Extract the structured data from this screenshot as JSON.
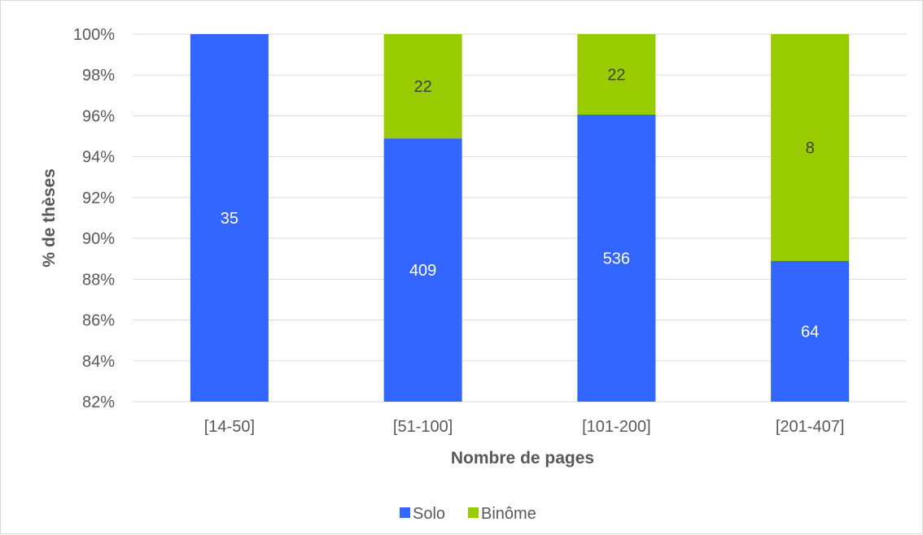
{
  "chart_data": {
    "type": "bar",
    "stacked": true,
    "percent": true,
    "categories": [
      "[14-50]",
      "[51-100]",
      "[101-200]",
      "[201-407]"
    ],
    "series": [
      {
        "name": "Solo",
        "color": "#3366FF",
        "counts": [
          35,
          409,
          536,
          64
        ],
        "labels": [
          "35",
          "409",
          "536",
          "64"
        ],
        "label_color": "#ffffff"
      },
      {
        "name": "Binôme",
        "color": "#99CC00",
        "counts": [
          0,
          22,
          22,
          8
        ],
        "labels": [
          "",
          "22",
          "22",
          "8"
        ],
        "label_color": "#404040"
      }
    ],
    "title": "",
    "xlabel": "Nombre de pages",
    "ylabel": "% de thèses",
    "ylim": [
      82,
      100
    ],
    "yticks": [
      82,
      84,
      86,
      88,
      90,
      92,
      94,
      96,
      98,
      100
    ],
    "ytick_labels": [
      "82%",
      "84%",
      "86%",
      "88%",
      "90%",
      "92%",
      "94%",
      "96%",
      "98%",
      "100%"
    ],
    "grid": true,
    "legend_position": "bottom"
  }
}
